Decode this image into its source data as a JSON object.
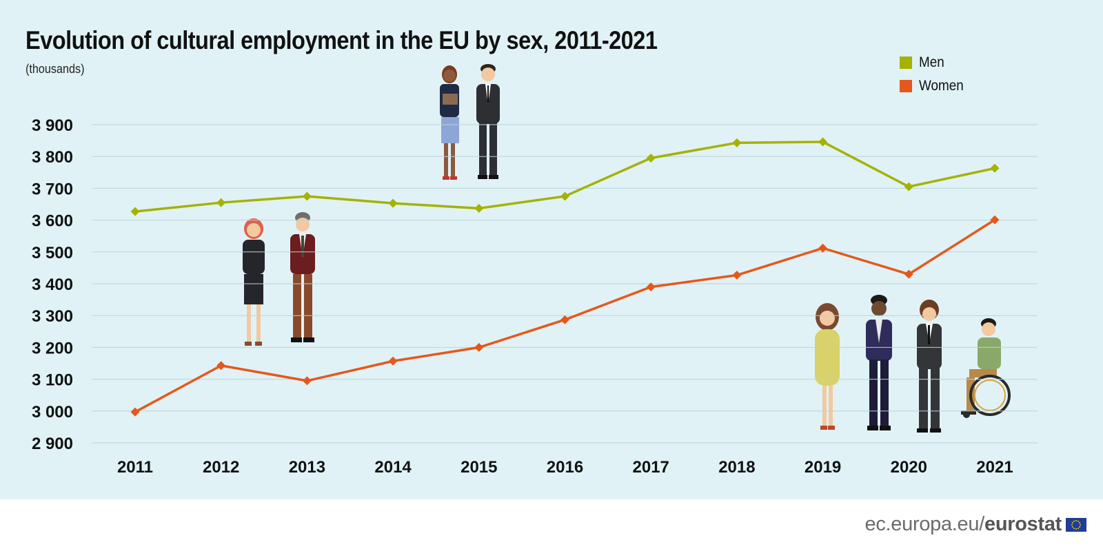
{
  "chart_data": {
    "type": "line",
    "title": "Evolution of cultural employment in the EU by sex, 2011-2021",
    "subtitle": "(thousands)",
    "categories": [
      "2011",
      "2012",
      "2013",
      "2014",
      "2015",
      "2016",
      "2017",
      "2018",
      "2019",
      "2020",
      "2021"
    ],
    "series": [
      {
        "name": "Men",
        "color": "#a5b200",
        "values": [
          3627,
          3655,
          3675,
          3653,
          3637,
          3675,
          3795,
          3843,
          3846,
          3705,
          3763
        ]
      },
      {
        "name": "Women",
        "color": "#e5581a",
        "values": [
          2997,
          3143,
          3095,
          3157,
          3200,
          3287,
          3390,
          3427,
          3512,
          3430,
          3601
        ]
      }
    ],
    "ylim": [
      2900,
      3900
    ],
    "yticks": [
      2900,
      3000,
      3100,
      3200,
      3300,
      3400,
      3500,
      3600,
      3700,
      3800,
      3900
    ],
    "ytick_labels": [
      "2 900",
      "3 000",
      "3 100",
      "3 200",
      "3 300",
      "3 400",
      "3 500",
      "3 600",
      "3 700",
      "3 800",
      "3 900"
    ],
    "grid": true,
    "legend_position": "top-right"
  },
  "footer": {
    "site": "ec.europa.eu/",
    "brand": "eurostat"
  },
  "colors": {
    "background": "#e0f2f6",
    "grid": "#b9d3d9"
  }
}
